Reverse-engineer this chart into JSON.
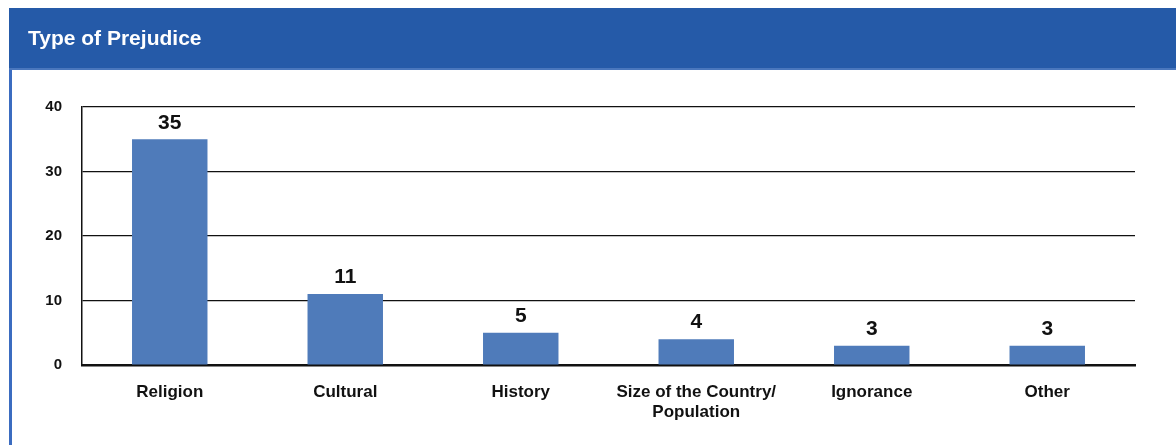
{
  "chart_data": {
    "type": "bar",
    "title": "Type of Prejudice",
    "categories": [
      "Religion",
      "Cultural",
      "History",
      "Size of the Country/ Population",
      "Ignorance",
      "Other"
    ],
    "values": [
      35,
      11,
      5,
      4,
      3,
      3
    ],
    "color": "#4f7bba",
    "ylim": [
      0,
      40
    ],
    "yticks": [
      0,
      10,
      20,
      30,
      40
    ],
    "grid": "y",
    "data_labels": true
  }
}
